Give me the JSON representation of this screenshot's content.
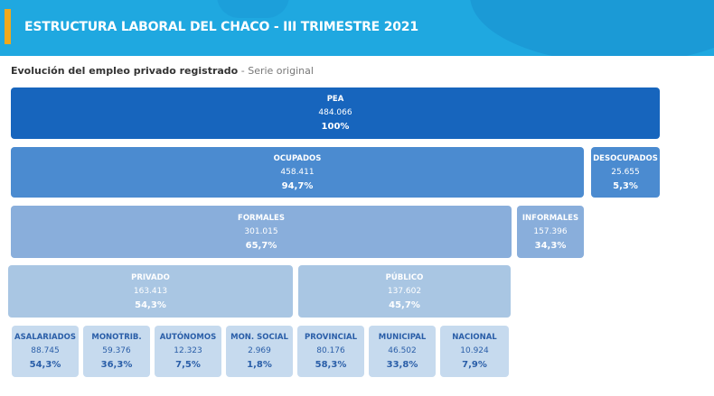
{
  "header": {
    "title": "ESTRUCTURA LABORAL DEL CHACO - III TRIMESTRE 2021"
  },
  "subtitle": {
    "main": "Evolución del empleo privado registrado",
    "suffix": " - Serie original"
  },
  "boxes": {
    "pea": {
      "label": "PEA",
      "value": "484.066",
      "pct": "100%"
    },
    "ocupados": {
      "label": "OCUPADOS",
      "value": "458.411",
      "pct": "94,7%"
    },
    "desocupados": {
      "label": "DESOCUPADOS",
      "value": "25.655",
      "pct": "5,3%"
    },
    "formales": {
      "label": "FORMALES",
      "value": "301.015",
      "pct": "65,7%"
    },
    "informales": {
      "label": "INFORMALES",
      "value": "157.396",
      "pct": "34,3%"
    },
    "privado": {
      "label": "PRIVADO",
      "value": "163.413",
      "pct": "54,3%"
    },
    "publico": {
      "label": "PÚBLICO",
      "value": "137.602",
      "pct": "45,7%"
    },
    "asalariados": {
      "label": "ASALARIADOS",
      "value": "88.745",
      "pct": "54,3%"
    },
    "monotrib": {
      "label": "MONOTRIB.",
      "value": "59.376",
      "pct": "36,3%"
    },
    "autonomos": {
      "label": "AUTÓNOMOS",
      "value": "12.323",
      "pct": "7,5%"
    },
    "monsocial": {
      "label": "MON. SOCIAL",
      "value": "2.969",
      "pct": "1,8%"
    },
    "provincial": {
      "label": "PROVINCIAL",
      "value": "80.176",
      "pct": "58,3%"
    },
    "municipal": {
      "label": "MUNICIPAL",
      "value": "46.502",
      "pct": "33,8%"
    },
    "nacional": {
      "label": "NACIONAL",
      "value": "10.924",
      "pct": "7,9%"
    }
  }
}
